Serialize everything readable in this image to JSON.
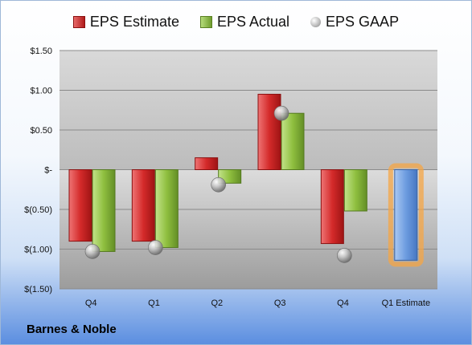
{
  "company": "Barnes & Noble",
  "chart_data": {
    "type": "bar",
    "categories": [
      "Q4",
      "Q1",
      "Q2",
      "Q3",
      "Q4",
      "Q1 Estimate"
    ],
    "series": [
      {
        "name": "EPS Estimate",
        "color": "#d42a2a",
        "values": [
          -0.9,
          -0.9,
          0.15,
          0.95,
          -0.93,
          null
        ]
      },
      {
        "name": "EPS Actual",
        "color": "#8fbf3f",
        "values": [
          -1.03,
          -0.98,
          -0.17,
          0.71,
          -0.52,
          null
        ]
      },
      {
        "name": "EPS GAAP",
        "color": "#b8b8b8",
        "marker": "sphere",
        "values": [
          -1.03,
          -0.98,
          -0.19,
          0.71,
          -1.08,
          null
        ]
      }
    ],
    "estimate_bar": {
      "category": "Q1 Estimate",
      "value": -1.14,
      "color": "#6d9ce0",
      "highlight": "#f5a544"
    },
    "y_ticks": [
      {
        "value": 1.5,
        "label": "$1.50"
      },
      {
        "value": 1.0,
        "label": "$1.00"
      },
      {
        "value": 0.5,
        "label": "$0.50"
      },
      {
        "value": 0,
        "label": "$-"
      },
      {
        "value": -0.5,
        "label": "$(0.50)"
      },
      {
        "value": -1.0,
        "label": "$(1.00)"
      },
      {
        "value": -1.5,
        "label": "$(1.50)"
      }
    ],
    "ylim": [
      -1.5,
      1.5
    ],
    "grid": true,
    "legend_position": "top"
  }
}
